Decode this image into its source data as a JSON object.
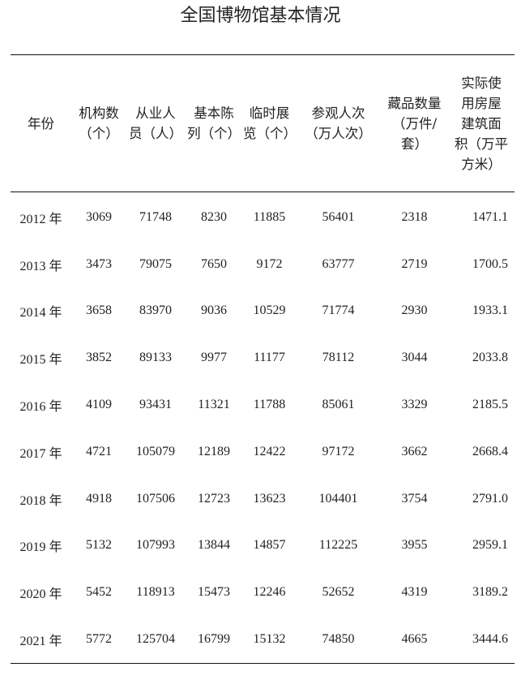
{
  "title": "全国博物馆基本情况",
  "table": {
    "headers": [
      "年份",
      "机构数\n（个）",
      "从业人\n员（人）",
      "基本陈\n列（个）",
      "临时展\n览（个）",
      "参观人次\n（万人次）",
      "藏品数量\n（万件/\n套）",
      "实际使\n用房屋\n建筑面\n积（万平\n方米）"
    ],
    "rows": [
      [
        "2012 年",
        "3069",
        "71748",
        "8230",
        "11885",
        "56401",
        "2318",
        "1471.1"
      ],
      [
        "2013 年",
        "3473",
        "79075",
        "7650",
        "9172",
        "63777",
        "2719",
        "1700.5"
      ],
      [
        "2014 年",
        "3658",
        "83970",
        "9036",
        "10529",
        "71774",
        "2930",
        "1933.1"
      ],
      [
        "2015 年",
        "3852",
        "89133",
        "9977",
        "11177",
        "78112",
        "3044",
        "2033.8"
      ],
      [
        "2016 年",
        "4109",
        "93431",
        "11321",
        "11788",
        "85061",
        "3329",
        "2185.5"
      ],
      [
        "2017 年",
        "4721",
        "105079",
        "12189",
        "12422",
        "97172",
        "3662",
        "2668.4"
      ],
      [
        "2018 年",
        "4918",
        "107506",
        "12723",
        "13623",
        "104401",
        "3754",
        "2791.0"
      ],
      [
        "2019 年",
        "5132",
        "107993",
        "13844",
        "14857",
        "112225",
        "3955",
        "2959.1"
      ],
      [
        "2020 年",
        "5452",
        "118913",
        "15473",
        "12246",
        "52652",
        "4319",
        "3189.2"
      ],
      [
        "2021 年",
        "5772",
        "125704",
        "16799",
        "15132",
        "74850",
        "4665",
        "3444.6"
      ]
    ]
  }
}
